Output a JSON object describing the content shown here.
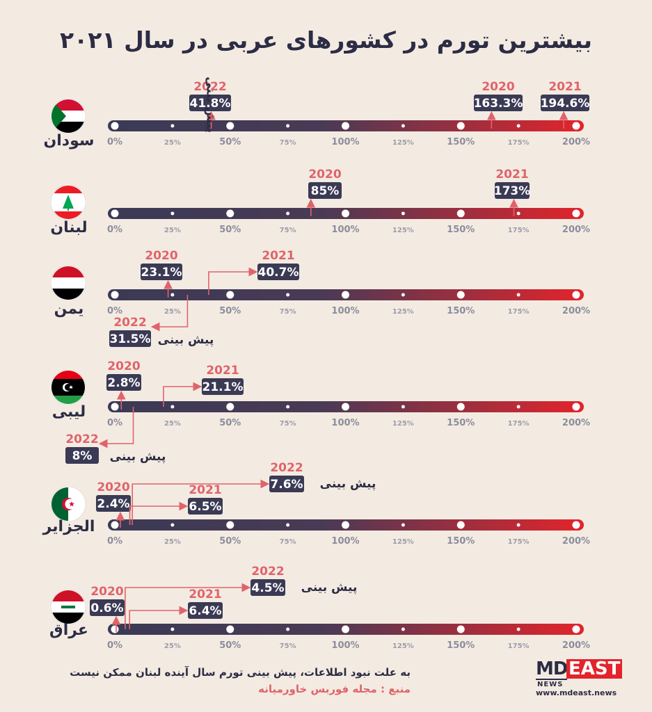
{
  "title": "بیشترین تورم در کشورهای عربی در سال ۲۰۲۱",
  "footnote": "به علت نبود اطلاعات، پیش بینی تورم سال آینده لبنان ممکن نیست",
  "source": "منبع : مجله فوربس خاورمیانه",
  "logo": {
    "md": "MD",
    "east": "EAST",
    "news": "NEWS",
    "url": "www.mdeast.news"
  },
  "colors": {
    "year": "#e0636b",
    "box": "#3a3a55",
    "bar_start": "#3a3a55",
    "bar_end": "#e3242b",
    "arrow": "#e0636b"
  },
  "chart_data": {
    "type": "bar",
    "xlim": [
      0,
      200
    ],
    "ticks": [
      "0%",
      "25%",
      "50%",
      "75%",
      "100%",
      "125%",
      "150%",
      "175%",
      "200%"
    ],
    "forecast_label": "پیش بینی",
    "countries": [
      {
        "name": "سودان",
        "flag": "sudan",
        "entries": [
          {
            "year": "2020",
            "value": 163.3,
            "label": "163.3%"
          },
          {
            "year": "2021",
            "value": 194.6,
            "label": "194.6%"
          },
          {
            "year": "2022",
            "value": 41.8,
            "label": "41.8%",
            "forecast": true
          }
        ]
      },
      {
        "name": "لبنان",
        "flag": "lebanon",
        "entries": [
          {
            "year": "2020",
            "value": 85,
            "label": "85%"
          },
          {
            "year": "2021",
            "value": 173,
            "label": "173%"
          }
        ]
      },
      {
        "name": "یمن",
        "flag": "yemen",
        "entries": [
          {
            "year": "2020",
            "value": 23.1,
            "label": "23.1%"
          },
          {
            "year": "2021",
            "value": 40.7,
            "label": "40.7%"
          },
          {
            "year": "2022",
            "value": 31.5,
            "label": "31.5%",
            "forecast": true
          }
        ]
      },
      {
        "name": "لیبی",
        "flag": "libya",
        "entries": [
          {
            "year": "2020",
            "value": 2.8,
            "label": "2.8%"
          },
          {
            "year": "2021",
            "value": 21.1,
            "label": "21.1%"
          },
          {
            "year": "2022",
            "value": 8,
            "label": "8%",
            "forecast": true
          }
        ]
      },
      {
        "name": "الجزایر",
        "flag": "algeria",
        "entries": [
          {
            "year": "2020",
            "value": 2.4,
            "label": "2.4%"
          },
          {
            "year": "2021",
            "value": 6.5,
            "label": "6.5%"
          },
          {
            "year": "2022",
            "value": 7.6,
            "label": "7.6%",
            "forecast": true
          }
        ]
      },
      {
        "name": "عراق",
        "flag": "iraq",
        "entries": [
          {
            "year": "2020",
            "value": 0.6,
            "label": "0.6%"
          },
          {
            "year": "2021",
            "value": 6.4,
            "label": "6.4%"
          },
          {
            "year": "2022",
            "value": 4.5,
            "label": "4.5%",
            "forecast": true
          }
        ]
      }
    ]
  }
}
